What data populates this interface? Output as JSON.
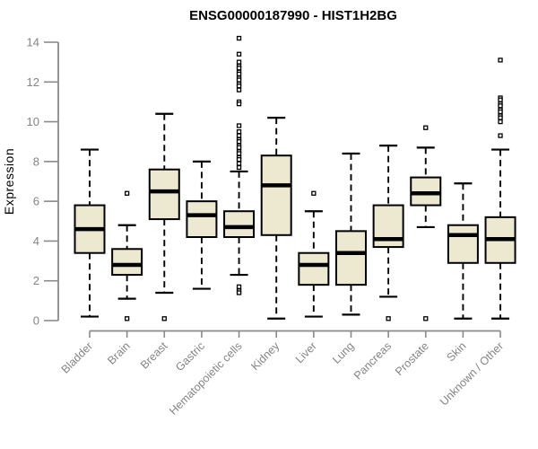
{
  "chart_data": {
    "type": "boxplot",
    "title": "ENSG00000187990 - HIST1H2BG",
    "xlabel": "",
    "ylabel": "Expression",
    "ylim": [
      0,
      14
    ],
    "yticks": [
      0,
      2,
      4,
      6,
      8,
      10,
      12,
      14
    ],
    "grid": false,
    "legend_position": "none",
    "categories": [
      "Bladder",
      "Brain",
      "Breast",
      "Gastric",
      "Hematopoietic cells",
      "Kidney",
      "Liver",
      "Lung",
      "Pancreas",
      "Prostate",
      "Skin",
      "Unknown / Other"
    ],
    "boxes": [
      {
        "category": "Bladder",
        "whisker_low": 0.2,
        "q1": 3.4,
        "median": 4.6,
        "q3": 5.8,
        "whisker_high": 8.6,
        "outliers": []
      },
      {
        "category": "Brain",
        "whisker_low": 1.1,
        "q1": 2.3,
        "median": 2.8,
        "q3": 3.6,
        "whisker_high": 4.8,
        "outliers": [
          6.4,
          0.1
        ]
      },
      {
        "category": "Breast",
        "whisker_low": 1.4,
        "q1": 5.1,
        "median": 6.5,
        "q3": 7.6,
        "whisker_high": 10.4,
        "outliers": [
          0.1
        ]
      },
      {
        "category": "Gastric",
        "whisker_low": 1.6,
        "q1": 4.2,
        "median": 5.3,
        "q3": 6.0,
        "whisker_high": 8.0,
        "outliers": []
      },
      {
        "category": "Hematopoietic cells",
        "whisker_low": 2.3,
        "q1": 4.2,
        "median": 4.7,
        "q3": 5.5,
        "whisker_high": 7.5,
        "outliers": [
          14.2,
          13.4,
          13.0,
          12.8,
          12.7,
          12.5,
          12.4,
          12.2,
          12.1,
          11.9,
          11.8,
          11.6,
          11.0,
          10.9,
          9.8,
          9.5,
          9.3,
          9.1,
          9.0,
          8.8,
          8.7,
          8.5,
          8.4,
          8.2,
          8.1,
          7.9,
          7.7,
          1.7,
          1.5,
          1.4
        ]
      },
      {
        "category": "Kidney",
        "whisker_low": 0.1,
        "q1": 4.3,
        "median": 6.8,
        "q3": 8.3,
        "whisker_high": 10.2,
        "outliers": []
      },
      {
        "category": "Liver",
        "whisker_low": 0.2,
        "q1": 1.8,
        "median": 2.8,
        "q3": 3.4,
        "whisker_high": 5.5,
        "outliers": [
          6.4
        ]
      },
      {
        "category": "Lung",
        "whisker_low": 0.3,
        "q1": 1.8,
        "median": 3.4,
        "q3": 4.5,
        "whisker_high": 8.4,
        "outliers": []
      },
      {
        "category": "Pancreas",
        "whisker_low": 1.2,
        "q1": 3.7,
        "median": 4.1,
        "q3": 5.8,
        "whisker_high": 8.8,
        "outliers": [
          0.1
        ]
      },
      {
        "category": "Prostate",
        "whisker_low": 4.7,
        "q1": 5.8,
        "median": 6.4,
        "q3": 7.2,
        "whisker_high": 8.7,
        "outliers": [
          9.7,
          0.1
        ]
      },
      {
        "category": "Skin",
        "whisker_low": 0.1,
        "q1": 2.9,
        "median": 4.3,
        "q3": 4.8,
        "whisker_high": 6.9,
        "outliers": []
      },
      {
        "category": "Unknown / Other",
        "whisker_low": 0.1,
        "q1": 2.9,
        "median": 4.1,
        "q3": 5.2,
        "whisker_high": 8.6,
        "outliers": [
          13.1,
          11.2,
          11.1,
          10.9,
          10.8,
          10.6,
          10.5,
          10.3,
          10.2,
          10.0,
          9.3
        ]
      }
    ],
    "colors": {
      "box_fill": "#EDE8D0",
      "box_stroke": "#000000",
      "median": "#000000",
      "whisker": "#000000",
      "outlier_stroke": "#000000",
      "axis": "#8a8a8a",
      "text": "#848484",
      "title": "#000000",
      "background": "#ffffff"
    }
  }
}
